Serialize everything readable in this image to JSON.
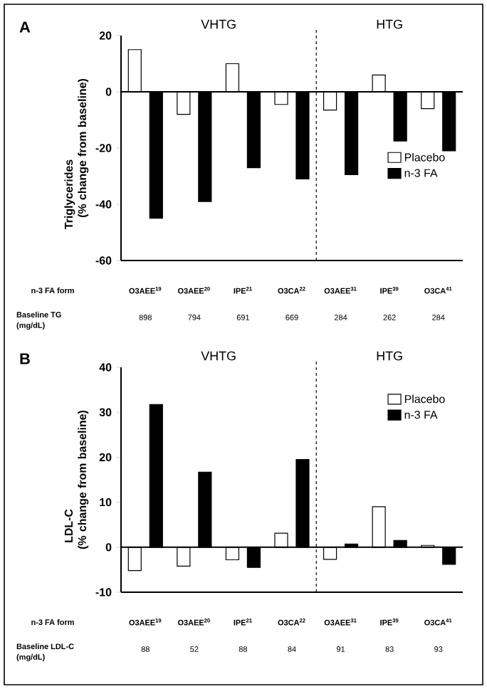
{
  "chart_data": [
    {
      "type": "bar",
      "ylabel": "Triglycerides (% change from baseline)",
      "categories": [
        "O3AEE$^{19}$",
        "O3AEE$^{20}$",
        "IPE$^{21}$",
        "O3CA$^{22}$",
        "O3AEE$^{31}$",
        "IPE$^{39}$",
        "O3CA$^{41}$"
      ],
      "series": [
        {
          "name": "Placebo",
          "color": "#ffffff",
          "values": [
            15,
            -8,
            10,
            -4.5,
            -6.5,
            6,
            -6
          ]
        },
        {
          "name": "n-3 FA",
          "color": "#000000",
          "values": [
            -45,
            -39,
            -27,
            -31,
            -29.5,
            -17.5,
            -21
          ]
        }
      ],
      "ylim": [
        -60,
        20
      ],
      "yticks": [
        -60,
        -40,
        -20,
        0,
        20
      ],
      "legend": "right",
      "annotations": [
        "A",
        "VHTG",
        "HTG",
        "n-3 FA form",
        "Baseline TG",
        "(mg/dL)",
        "898",
        "794",
        "691",
        "669",
        "284",
        "262",
        "284"
      ]
    },
    {
      "type": "bar",
      "ylabel": "LDL-C (% change from baseline)",
      "categories": [
        "O3AEE$^{19}$",
        "O3AEE$^{20}$",
        "IPE$^{21}$",
        "O3CA$^{22}$",
        "O3AEE$^{31}$",
        "IPE$^{39}$",
        "O3CA$^{41}$"
      ],
      "series": [
        {
          "name": "Placebo",
          "color": "#ffffff",
          "values": [
            -5.2,
            -4.2,
            -2.8,
            3.1,
            -2.7,
            9,
            0.4
          ]
        },
        {
          "name": "n-3 FA",
          "color": "#000000",
          "values": [
            31.7,
            16.7,
            -4.5,
            19.5,
            0.7,
            1.5,
            -3.8
          ]
        }
      ],
      "ylim": [
        -10,
        40
      ],
      "yticks": [
        -10,
        0,
        10,
        20,
        30,
        40
      ],
      "legend": "top right",
      "annotations": [
        "B",
        "VHTG",
        "HTG",
        "n-3 FA form",
        "Baseline LDL-C",
        "(mg/dL)",
        "88",
        "52",
        "88",
        "84",
        "91",
        "83",
        "93"
      ]
    }
  ]
}
